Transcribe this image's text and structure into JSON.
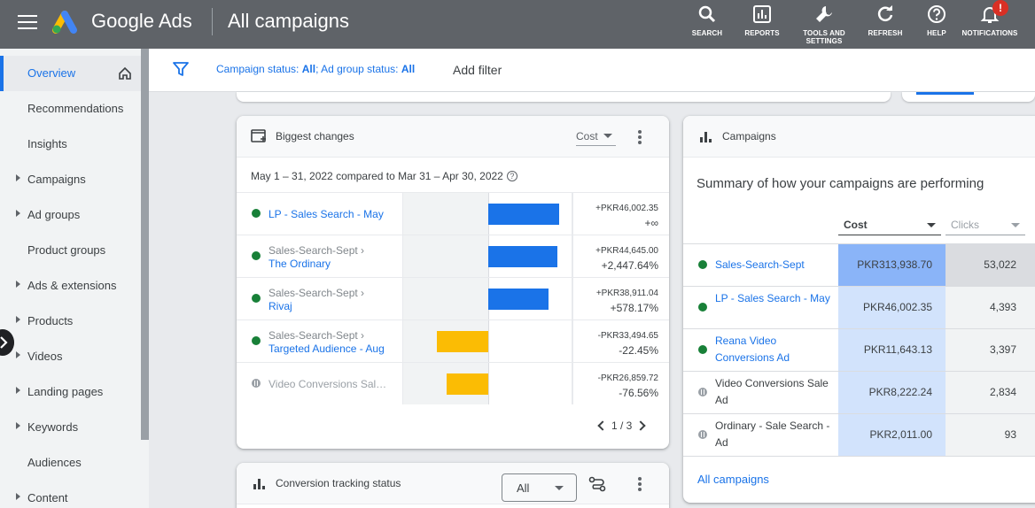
{
  "header": {
    "brand": "Google Ads",
    "page_title": "All campaigns",
    "tools": [
      {
        "label": "SEARCH",
        "icon": "search-icon"
      },
      {
        "label": "REPORTS",
        "icon": "reports-icon"
      },
      {
        "label": "TOOLS AND SETTINGS",
        "icon": "wrench-icon"
      },
      {
        "label": "REFRESH",
        "icon": "refresh-icon"
      },
      {
        "label": "HELP",
        "icon": "help-icon"
      },
      {
        "label": "NOTIFICATIONS",
        "icon": "bell-icon"
      }
    ],
    "notification_badge": "!"
  },
  "sidebar": {
    "items": [
      {
        "label": "Overview"
      },
      {
        "label": "Recommendations"
      },
      {
        "label": "Insights"
      },
      {
        "label": "Campaigns"
      },
      {
        "label": "Ad groups"
      },
      {
        "label": "Product groups"
      },
      {
        "label": "Ads & extensions"
      },
      {
        "label": "Products"
      },
      {
        "label": "Videos"
      },
      {
        "label": "Landing pages"
      },
      {
        "label": "Keywords"
      },
      {
        "label": "Audiences"
      },
      {
        "label": "Content"
      }
    ]
  },
  "filter": {
    "campaign_status_label": "Campaign status:",
    "campaign_status_value": "All",
    "ad_group_label": "; Ad group status:",
    "ad_group_value": "All",
    "add_filter": "Add filter"
  },
  "biggest_changes": {
    "title": "Biggest changes",
    "metric": "Cost",
    "date_range": "May 1 – 31, 2022 compared to Mar 31 – Apr 30, 2022",
    "help": "?",
    "rows": [
      {
        "parent": "",
        "name": "LP - Sales Search - May",
        "status": "enabled",
        "change": 46002.35,
        "change_label": "+PKR46,002.35",
        "pct": "+∞"
      },
      {
        "parent": "Sales-Search-Sept ›",
        "name": "The Ordinary",
        "status": "enabled",
        "change": 44645.0,
        "change_label": "+PKR44,645.00",
        "pct": "+2,447.64%"
      },
      {
        "parent": "Sales-Search-Sept ›",
        "name": "Rivaj",
        "status": "enabled",
        "change": 38911.04,
        "change_label": "+PKR38,911.04",
        "pct": "+578.17%"
      },
      {
        "parent": "Sales-Search-Sept ›",
        "name": "Targeted Audience - Aug",
        "status": "enabled",
        "change": -33494.65,
        "change_label": "-PKR33,494.65",
        "pct": "-22.45%"
      },
      {
        "parent": "",
        "name": "Video Conversions Sal…",
        "status": "paused",
        "change": -26859.72,
        "change_label": "-PKR26,859.72",
        "pct": "-76.56%"
      }
    ],
    "page": "1 / 3",
    "colors": {
      "positive": "#1a73e8",
      "negative": "#fbbc04"
    }
  },
  "campaigns": {
    "title": "Campaigns",
    "summary": "Summary of how your campaigns are performing",
    "col_cost": "Cost",
    "col_clicks": "Clicks",
    "rows": [
      {
        "name": "Sales-Search-Sept",
        "status": "enabled",
        "cost": "PKR313,938.70",
        "clicks": "53,022"
      },
      {
        "name": "LP - Sales Search - May",
        "status": "enabled",
        "cost": "PKR46,002.35",
        "clicks": "4,393"
      },
      {
        "name": "Reana Video Conversions Ad",
        "status": "enabled",
        "cost": "PKR11,643.13",
        "clicks": "3,397"
      },
      {
        "name": "Video Conversions Sale Ad",
        "status": "paused",
        "cost": "PKR8,222.24",
        "clicks": "2,834"
      },
      {
        "name": "Ordinary - Sale Search -Ad",
        "status": "paused",
        "cost": "PKR2,011.00",
        "clicks": "93"
      }
    ],
    "all_link": "All campaigns",
    "colors": {
      "cost_top": "#8ab4f8",
      "cost_rest": "#d2e3fc",
      "clicks_top": "#dadce0",
      "clicks_rest": "#f1f3f4"
    }
  },
  "conversion_tracking": {
    "title": "Conversion tracking status",
    "select_value": "All"
  }
}
